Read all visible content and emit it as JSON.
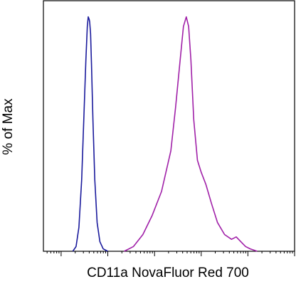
{
  "chart_data": {
    "type": "line",
    "title": "",
    "xlabel": "CD11a NovaFluor Red 700",
    "ylabel": "% of Max",
    "xscale": "log",
    "xlim": [
      0.62,
      6.0
    ],
    "ylim": [
      0,
      100
    ],
    "grid": false,
    "legend": "none",
    "series": [
      {
        "color": "#1a1a9c",
        "x": [
          1.25,
          1.32,
          1.38,
          1.44,
          1.49,
          1.53,
          1.56,
          1.58,
          1.6,
          1.61,
          1.63,
          1.65,
          1.68,
          1.72,
          1.77,
          1.83,
          1.9,
          2.0
        ],
        "y": [
          0,
          2,
          10,
          30,
          58,
          80,
          94,
          98,
          97,
          96,
          91,
          78,
          55,
          30,
          12,
          4,
          1,
          0
        ]
      },
      {
        "color": "#a020a8",
        "x": [
          2.35,
          2.55,
          2.75,
          2.95,
          3.15,
          3.35,
          3.45,
          3.55,
          3.62,
          3.68,
          3.73,
          3.78,
          3.84,
          3.92,
          4.0,
          4.1,
          4.22,
          4.35,
          4.5,
          4.65,
          4.75,
          4.85,
          4.95,
          5.05,
          5.2
        ],
        "y": [
          0,
          2,
          7,
          15,
          25,
          42,
          60,
          80,
          94,
          98,
          94,
          80,
          55,
          38,
          33,
          28,
          20,
          12,
          7,
          5,
          6,
          4,
          2,
          1,
          0
        ]
      }
    ]
  }
}
